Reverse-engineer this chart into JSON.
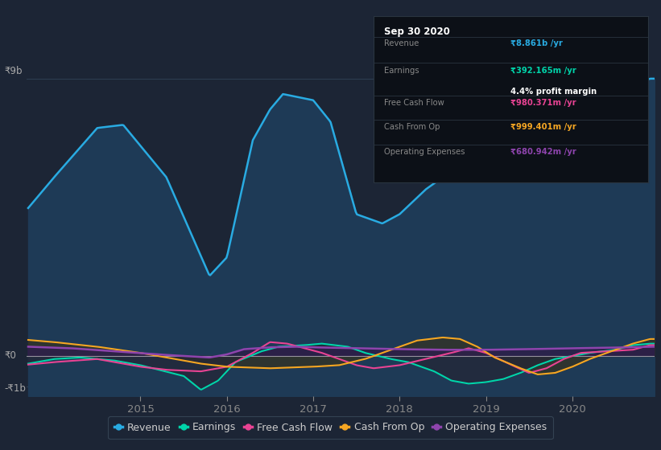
{
  "bg_color": "#1c2535",
  "plot_bg_color": "#1c2535",
  "y_label_top": "₹9b",
  "y_label_zero": "₹0",
  "y_label_neg": "-₹1b",
  "x_ticks": [
    "2015",
    "2016",
    "2017",
    "2018",
    "2019",
    "2020"
  ],
  "legend_items": [
    {
      "label": "Revenue",
      "color": "#29abe2"
    },
    {
      "label": "Earnings",
      "color": "#00d4aa"
    },
    {
      "label": "Free Cash Flow",
      "color": "#e84393"
    },
    {
      "label": "Cash From Op",
      "color": "#f5a623"
    },
    {
      "label": "Operating Expenses",
      "color": "#8e44ad"
    }
  ],
  "tooltip_title": "Sep 30 2020",
  "tooltip_rows": [
    {
      "label": "Revenue",
      "value": "₹8.861b /yr",
      "value_color": "#29abe2",
      "label_color": "#888888"
    },
    {
      "label": "Earnings",
      "value": "₹392.165m /yr",
      "value_color": "#00d4aa",
      "label_color": "#888888"
    },
    {
      "extra": "4.4% profit margin",
      "extra_color": "#ffffff"
    },
    {
      "label": "Free Cash Flow",
      "value": "₹980.371m /yr",
      "value_color": "#e84393",
      "label_color": "#888888"
    },
    {
      "label": "Cash From Op",
      "value": "₹999.401m /yr",
      "value_color": "#f5a623",
      "label_color": "#888888"
    },
    {
      "label": "Operating Expenses",
      "value": "₹680.942m /yr",
      "value_color": "#8e44ad",
      "label_color": "#888888"
    }
  ],
  "revenue_color": "#29abe2",
  "revenue_fill": "#1e3a5a",
  "earnings_color": "#00d4aa",
  "earnings_fill": "#2a2a3a",
  "fcf_color": "#e84393",
  "cashfromop_color": "#f5a623",
  "cashfromop_fill": "#3a3a2a",
  "opex_color": "#8e44ad",
  "opex_fill": "#2d1f4a"
}
